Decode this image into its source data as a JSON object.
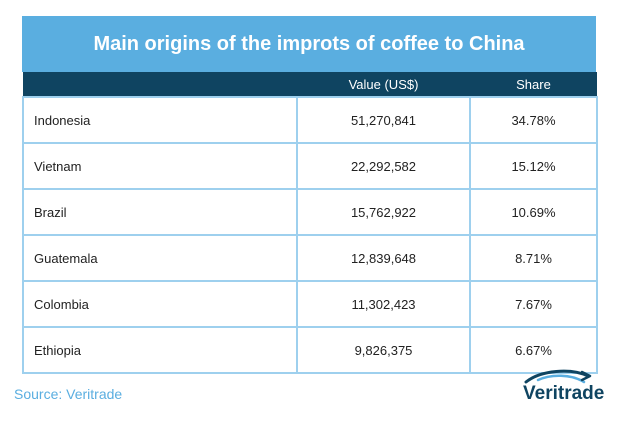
{
  "chart_data": {
    "type": "table",
    "title": "Main origins of the improts of coffee to China",
    "columns": [
      "",
      "Value (US$)",
      "Share"
    ],
    "rows": [
      {
        "country": "Indonesia",
        "value": "51,270,841",
        "share": "34.78%"
      },
      {
        "country": "Vietnam",
        "value": "22,292,582",
        "share": "15.12%"
      },
      {
        "country": "Brazil",
        "value": "15,762,922",
        "share": "10.69%"
      },
      {
        "country": "Guatemala",
        "value": "12,839,648",
        "share": "8.71%"
      },
      {
        "country": "Colombia",
        "value": "11,302,423",
        "share": "7.67%"
      },
      {
        "country": "Ethiopia",
        "value": "9,826,375",
        "share": "6.67%"
      }
    ]
  },
  "source": "Source: Veritrade",
  "logo": {
    "text": "Veritrade",
    "icon": "globe-swoosh-icon"
  },
  "colors": {
    "title_bg": "#5aaee0",
    "header_bg": "#0f4461",
    "border": "#9ed0ee",
    "source": "#5aaee0"
  }
}
